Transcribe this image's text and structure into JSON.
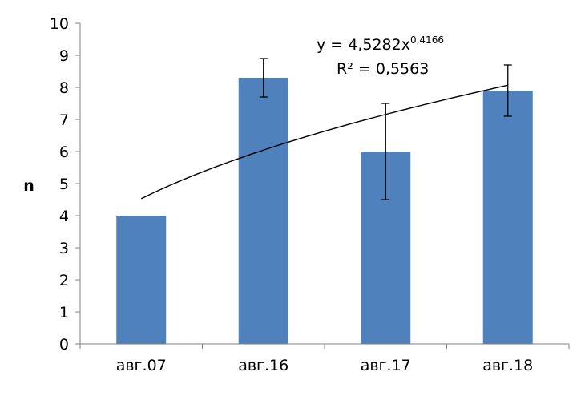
{
  "chart_data": {
    "type": "bar",
    "categories": [
      "авг.07",
      "авг.16",
      "авг.17",
      "авг.18"
    ],
    "values": [
      4.0,
      8.3,
      6.0,
      7.9
    ],
    "error_bars": [
      {
        "low": 4.0,
        "high": 4.0
      },
      {
        "low": 7.7,
        "high": 8.9
      },
      {
        "low": 4.5,
        "high": 7.5
      },
      {
        "low": 7.1,
        "high": 8.7
      }
    ],
    "ylabel": "n",
    "xlabel": "",
    "ylim": [
      0,
      10
    ],
    "yticks": [
      "0",
      "1",
      "2",
      "3",
      "4",
      "5",
      "6",
      "7",
      "8",
      "9",
      "10"
    ],
    "grid": false,
    "bar_color": "#4f81bd",
    "trendline": {
      "type": "power",
      "a": 4.5282,
      "b": 0.4166,
      "equation_prefix": "y = 4,5282x",
      "equation_exponent": "0,4166",
      "r2_text": "R² = 0,5563",
      "color": "#000000"
    }
  }
}
